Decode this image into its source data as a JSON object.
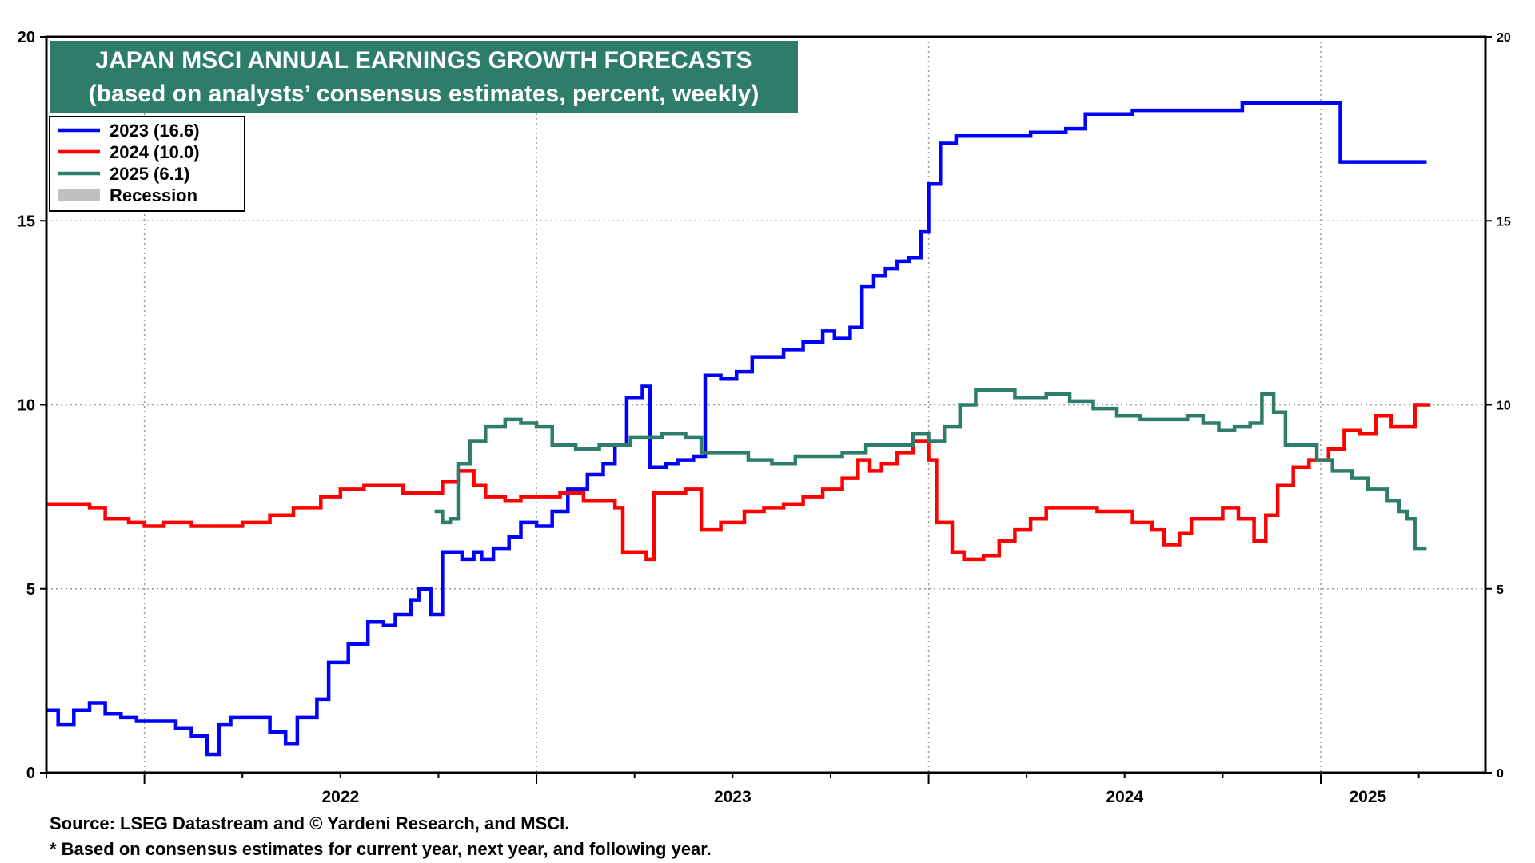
{
  "colors": {
    "series_2023": "#0000ff",
    "series_2024": "#ff0000",
    "series_2025": "#2e7d6b",
    "recession": "#c0c0c0",
    "title_bg": "#2e7d6b",
    "grid": "#999999"
  },
  "chart_data": {
    "type": "line",
    "title": "JAPAN MSCI ANNUAL EARNINGS GROWTH FORECASTS",
    "subtitle": "(based on analysts’ consensus estimates, percent, weekly)",
    "xlabel": "",
    "ylabel": "",
    "ylim": [
      0,
      20
    ],
    "xlim": [
      2021.75,
      2025.42
    ],
    "y_ticks": [
      0,
      5,
      10,
      15,
      20
    ],
    "right_y_ticks": [
      0,
      5,
      10,
      15,
      20
    ],
    "x_tick_labels": [
      {
        "label": "2022",
        "x": 2022.0
      },
      {
        "label": "2023",
        "x": 2023.0
      },
      {
        "label": "2024",
        "x": 2024.0
      },
      {
        "label": "2025",
        "x": 2025.0
      }
    ],
    "year_boundaries": [
      2022.0,
      2023.0,
      2024.0,
      2025.0
    ],
    "quarter_ticks": [
      2021.75,
      2022.25,
      2022.5,
      2022.75,
      2023.25,
      2023.5,
      2023.75,
      2024.25,
      2024.5,
      2024.75,
      2025.25
    ],
    "grid": true,
    "legend": {
      "placement": "top-left",
      "entries": [
        {
          "label": "2023 (16.6)",
          "color_key": "series_2023",
          "kind": "line"
        },
        {
          "label": "2024 (10.0)",
          "color_key": "series_2024",
          "kind": "line"
        },
        {
          "label": "2025 (6.1)",
          "color_key": "series_2025",
          "kind": "line"
        },
        {
          "label": "Recession",
          "color_key": "recession",
          "kind": "box"
        }
      ]
    },
    "series": [
      {
        "name": "2023 (16.6)",
        "color_key": "series_2023",
        "points": [
          [
            2021.75,
            1.7
          ],
          [
            2021.78,
            1.3
          ],
          [
            2021.82,
            1.7
          ],
          [
            2021.86,
            1.9
          ],
          [
            2021.9,
            1.6
          ],
          [
            2021.94,
            1.5
          ],
          [
            2021.98,
            1.4
          ],
          [
            2022.03,
            1.4
          ],
          [
            2022.08,
            1.2
          ],
          [
            2022.12,
            1.0
          ],
          [
            2022.16,
            0.5
          ],
          [
            2022.19,
            1.3
          ],
          [
            2022.22,
            1.5
          ],
          [
            2022.27,
            1.5
          ],
          [
            2022.32,
            1.1
          ],
          [
            2022.36,
            0.8
          ],
          [
            2022.39,
            1.5
          ],
          [
            2022.44,
            2.0
          ],
          [
            2022.47,
            3.0
          ],
          [
            2022.52,
            3.5
          ],
          [
            2022.57,
            4.1
          ],
          [
            2022.61,
            4.0
          ],
          [
            2022.64,
            4.3
          ],
          [
            2022.68,
            4.7
          ],
          [
            2022.7,
            5.0
          ],
          [
            2022.73,
            4.3
          ],
          [
            2022.76,
            6.0
          ],
          [
            2022.81,
            5.8
          ],
          [
            2022.84,
            6.0
          ],
          [
            2022.86,
            5.8
          ],
          [
            2022.89,
            6.1
          ],
          [
            2022.93,
            6.4
          ],
          [
            2022.96,
            6.8
          ],
          [
            2023.0,
            6.7
          ],
          [
            2023.04,
            7.1
          ],
          [
            2023.08,
            7.7
          ],
          [
            2023.13,
            8.1
          ],
          [
            2023.17,
            8.4
          ],
          [
            2023.2,
            8.9
          ],
          [
            2023.23,
            10.2
          ],
          [
            2023.27,
            10.5
          ],
          [
            2023.29,
            8.3
          ],
          [
            2023.33,
            8.4
          ],
          [
            2023.36,
            8.5
          ],
          [
            2023.4,
            8.6
          ],
          [
            2023.43,
            10.8
          ],
          [
            2023.47,
            10.7
          ],
          [
            2023.51,
            10.9
          ],
          [
            2023.55,
            11.3
          ],
          [
            2023.59,
            11.3
          ],
          [
            2023.63,
            11.5
          ],
          [
            2023.68,
            11.7
          ],
          [
            2023.73,
            12.0
          ],
          [
            2023.76,
            11.8
          ],
          [
            2023.8,
            12.1
          ],
          [
            2023.83,
            13.2
          ],
          [
            2023.86,
            13.5
          ],
          [
            2023.89,
            13.7
          ],
          [
            2023.92,
            13.9
          ],
          [
            2023.95,
            14.0
          ],
          [
            2023.98,
            14.7
          ],
          [
            2024.0,
            16.0
          ],
          [
            2024.03,
            17.1
          ],
          [
            2024.07,
            17.3
          ],
          [
            2024.2,
            17.3
          ],
          [
            2024.26,
            17.4
          ],
          [
            2024.35,
            17.5
          ],
          [
            2024.4,
            17.9
          ],
          [
            2024.5,
            17.9
          ],
          [
            2024.52,
            18.0
          ],
          [
            2024.72,
            18.0
          ],
          [
            2024.8,
            18.2
          ],
          [
            2024.92,
            18.2
          ],
          [
            2025.04,
            18.2
          ],
          [
            2025.05,
            16.6
          ],
          [
            2025.27,
            16.6
          ]
        ]
      },
      {
        "name": "2024 (10.0)",
        "color_key": "series_2024",
        "points": [
          [
            2021.75,
            7.3
          ],
          [
            2021.8,
            7.3
          ],
          [
            2021.86,
            7.2
          ],
          [
            2021.9,
            6.9
          ],
          [
            2021.96,
            6.8
          ],
          [
            2022.0,
            6.7
          ],
          [
            2022.05,
            6.8
          ],
          [
            2022.12,
            6.7
          ],
          [
            2022.2,
            6.7
          ],
          [
            2022.25,
            6.8
          ],
          [
            2022.32,
            7.0
          ],
          [
            2022.38,
            7.2
          ],
          [
            2022.45,
            7.5
          ],
          [
            2022.5,
            7.7
          ],
          [
            2022.56,
            7.8
          ],
          [
            2022.62,
            7.8
          ],
          [
            2022.66,
            7.6
          ],
          [
            2022.72,
            7.6
          ],
          [
            2022.76,
            7.9
          ],
          [
            2022.8,
            8.2
          ],
          [
            2022.84,
            7.8
          ],
          [
            2022.87,
            7.5
          ],
          [
            2022.92,
            7.4
          ],
          [
            2022.96,
            7.5
          ],
          [
            2023.0,
            7.5
          ],
          [
            2023.06,
            7.6
          ],
          [
            2023.12,
            7.4
          ],
          [
            2023.16,
            7.4
          ],
          [
            2023.2,
            7.2
          ],
          [
            2023.22,
            6.0
          ],
          [
            2023.25,
            6.0
          ],
          [
            2023.28,
            5.8
          ],
          [
            2023.3,
            7.6
          ],
          [
            2023.35,
            7.6
          ],
          [
            2023.38,
            7.7
          ],
          [
            2023.42,
            6.6
          ],
          [
            2023.47,
            6.8
          ],
          [
            2023.53,
            7.1
          ],
          [
            2023.58,
            7.2
          ],
          [
            2023.63,
            7.3
          ],
          [
            2023.68,
            7.5
          ],
          [
            2023.73,
            7.7
          ],
          [
            2023.78,
            8.0
          ],
          [
            2023.82,
            8.5
          ],
          [
            2023.85,
            8.2
          ],
          [
            2023.88,
            8.4
          ],
          [
            2023.92,
            8.7
          ],
          [
            2023.96,
            9.0
          ],
          [
            2024.0,
            8.5
          ],
          [
            2024.02,
            6.8
          ],
          [
            2024.06,
            6.0
          ],
          [
            2024.09,
            5.8
          ],
          [
            2024.14,
            5.9
          ],
          [
            2024.18,
            6.3
          ],
          [
            2024.22,
            6.6
          ],
          [
            2024.26,
            6.9
          ],
          [
            2024.3,
            7.2
          ],
          [
            2024.36,
            7.2
          ],
          [
            2024.43,
            7.1
          ],
          [
            2024.49,
            7.1
          ],
          [
            2024.52,
            6.8
          ],
          [
            2024.57,
            6.6
          ],
          [
            2024.6,
            6.2
          ],
          [
            2024.64,
            6.5
          ],
          [
            2024.67,
            6.9
          ],
          [
            2024.71,
            6.9
          ],
          [
            2024.75,
            7.2
          ],
          [
            2024.79,
            6.9
          ],
          [
            2024.83,
            6.3
          ],
          [
            2024.86,
            7.0
          ],
          [
            2024.89,
            7.8
          ],
          [
            2024.93,
            8.3
          ],
          [
            2024.97,
            8.5
          ],
          [
            2025.02,
            8.8
          ],
          [
            2025.06,
            9.3
          ],
          [
            2025.1,
            9.2
          ],
          [
            2025.14,
            9.7
          ],
          [
            2025.18,
            9.4
          ],
          [
            2025.23,
            9.4
          ],
          [
            2025.24,
            10.0
          ],
          [
            2025.28,
            10.0
          ]
        ]
      },
      {
        "name": "2025 (6.1)",
        "color_key": "series_2025",
        "points": [
          [
            2022.74,
            7.1
          ],
          [
            2022.76,
            6.8
          ],
          [
            2022.78,
            6.9
          ],
          [
            2022.8,
            8.4
          ],
          [
            2022.83,
            9.0
          ],
          [
            2022.87,
            9.4
          ],
          [
            2022.92,
            9.6
          ],
          [
            2022.96,
            9.5
          ],
          [
            2023.0,
            9.4
          ],
          [
            2023.04,
            8.9
          ],
          [
            2023.1,
            8.8
          ],
          [
            2023.16,
            8.9
          ],
          [
            2023.24,
            9.1
          ],
          [
            2023.32,
            9.2
          ],
          [
            2023.38,
            9.1
          ],
          [
            2023.42,
            8.7
          ],
          [
            2023.48,
            8.7
          ],
          [
            2023.54,
            8.5
          ],
          [
            2023.6,
            8.4
          ],
          [
            2023.66,
            8.6
          ],
          [
            2023.72,
            8.6
          ],
          [
            2023.78,
            8.7
          ],
          [
            2023.84,
            8.9
          ],
          [
            2023.9,
            8.9
          ],
          [
            2023.96,
            9.2
          ],
          [
            2024.0,
            9.0
          ],
          [
            2024.04,
            9.4
          ],
          [
            2024.08,
            10.0
          ],
          [
            2024.12,
            10.4
          ],
          [
            2024.18,
            10.4
          ],
          [
            2024.22,
            10.2
          ],
          [
            2024.3,
            10.3
          ],
          [
            2024.36,
            10.1
          ],
          [
            2024.42,
            9.9
          ],
          [
            2024.48,
            9.7
          ],
          [
            2024.54,
            9.6
          ],
          [
            2024.6,
            9.6
          ],
          [
            2024.66,
            9.7
          ],
          [
            2024.7,
            9.5
          ],
          [
            2024.74,
            9.3
          ],
          [
            2024.78,
            9.4
          ],
          [
            2024.82,
            9.5
          ],
          [
            2024.85,
            10.3
          ],
          [
            2024.88,
            9.8
          ],
          [
            2024.91,
            8.9
          ],
          [
            2024.95,
            8.9
          ],
          [
            2024.99,
            8.5
          ],
          [
            2025.03,
            8.2
          ],
          [
            2025.08,
            8.0
          ],
          [
            2025.12,
            7.7
          ],
          [
            2025.17,
            7.4
          ],
          [
            2025.2,
            7.1
          ],
          [
            2025.22,
            6.9
          ],
          [
            2025.24,
            6.1
          ],
          [
            2025.27,
            6.1
          ]
        ]
      }
    ]
  },
  "footer": {
    "source": "Source: LSEG Datastream and © Yardeni Research, and MSCI.",
    "note": "* Based on consensus estimates for current year, next year, and following year."
  }
}
